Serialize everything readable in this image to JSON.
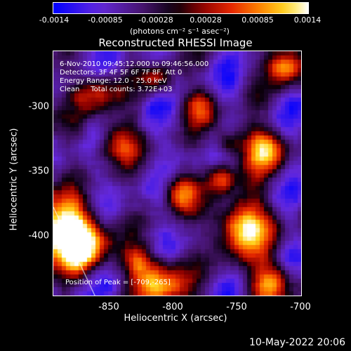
{
  "colorbar": {
    "ticks": [
      "-0.0014",
      "-0.00085",
      "-0.00028",
      "0.00028",
      "0.00085",
      "0.0014"
    ],
    "unit": "(photons cm⁻² s⁻¹ asec⁻²)"
  },
  "title": "Reconstructed RHESSI Image",
  "info": {
    "time": "6-Nov-2010 09:45:12.000 to 09:46:56.000",
    "detectors": "Detectors: 3F 4F 5F 6F 7F 8F, Att 0",
    "energy": "Energy Range: 12.0 - 25.0 keV",
    "clean": "Clean     Total counts: 3.72E+03",
    "peak": "Position of Peak = [-709,-265]"
  },
  "axes": {
    "xlabel": "Heliocentric X (arcsec)",
    "ylabel": "Heliocentric Y (arcsec)",
    "xticks": [
      "-850",
      "-800",
      "-750",
      "-700"
    ],
    "yticks": [
      "-300",
      "-350",
      "-400"
    ]
  },
  "footer": "10-May-2022 20:06",
  "colors": {
    "background": "#000000",
    "text": "#ffffff"
  }
}
